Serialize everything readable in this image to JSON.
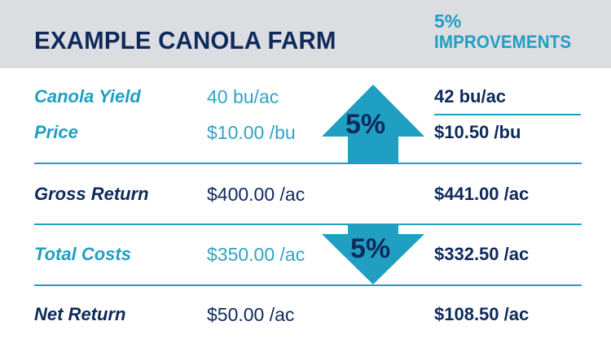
{
  "header": {
    "title": "EXAMPLE CANOLA FARM",
    "improvements_pct": "5%",
    "improvements_label": "IMPROVEMENTS"
  },
  "rows": [
    {
      "label": "Canola Yield",
      "current": "40 bu/ac",
      "improved": "42 bu/ac"
    },
    {
      "label": "Price",
      "current": "$10.00 /bu",
      "improved": "$10.50 /bu"
    },
    {
      "label": "Gross Return",
      "current": "$400.00 /ac",
      "improved": "$441.00 /ac"
    },
    {
      "label": "Total Costs",
      "current": "$350.00 /ac",
      "improved": "$332.50 /ac"
    },
    {
      "label": "Net Return",
      "current": "$50.00 /ac",
      "improved": "$108.50 /ac"
    }
  ],
  "arrows": {
    "up_label": "5%",
    "down_label": "5%"
  },
  "colors": {
    "navy": "#0e2a5c",
    "teal": "#1f9fc2",
    "header_bg": "#dcdde1"
  }
}
